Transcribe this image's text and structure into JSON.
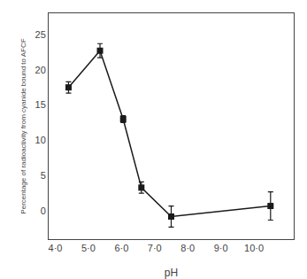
{
  "chart_data": {
    "type": "line",
    "x": [
      4.4,
      5.35,
      6.05,
      6.6,
      7.5,
      10.5
    ],
    "values": [
      17.5,
      22.7,
      13.0,
      3.3,
      -0.8,
      0.7
    ],
    "yerr": [
      0.8,
      1.0,
      0.5,
      0.8,
      1.5,
      2.0
    ],
    "color": "#1a1a1a",
    "marker": "square",
    "xlabel": "pH",
    "ylabel": "Percentage of radioactivity from cyanide bound to AFCF",
    "xlim": [
      3.8,
      11.2
    ],
    "ylim": [
      -4,
      28
    ],
    "xticks": [
      {
        "value": 4.0,
        "label": "4·0"
      },
      {
        "value": 5.0,
        "label": "5·0"
      },
      {
        "value": 6.0,
        "label": "6·0"
      },
      {
        "value": 7.0,
        "label": "7·0"
      },
      {
        "value": 8.0,
        "label": "8·0"
      },
      {
        "value": 9.0,
        "label": "9·0"
      },
      {
        "value": 10.0,
        "label": "10·0"
      }
    ],
    "yticks": [
      0,
      5,
      10,
      15,
      20,
      25
    ],
    "grid": false
  }
}
